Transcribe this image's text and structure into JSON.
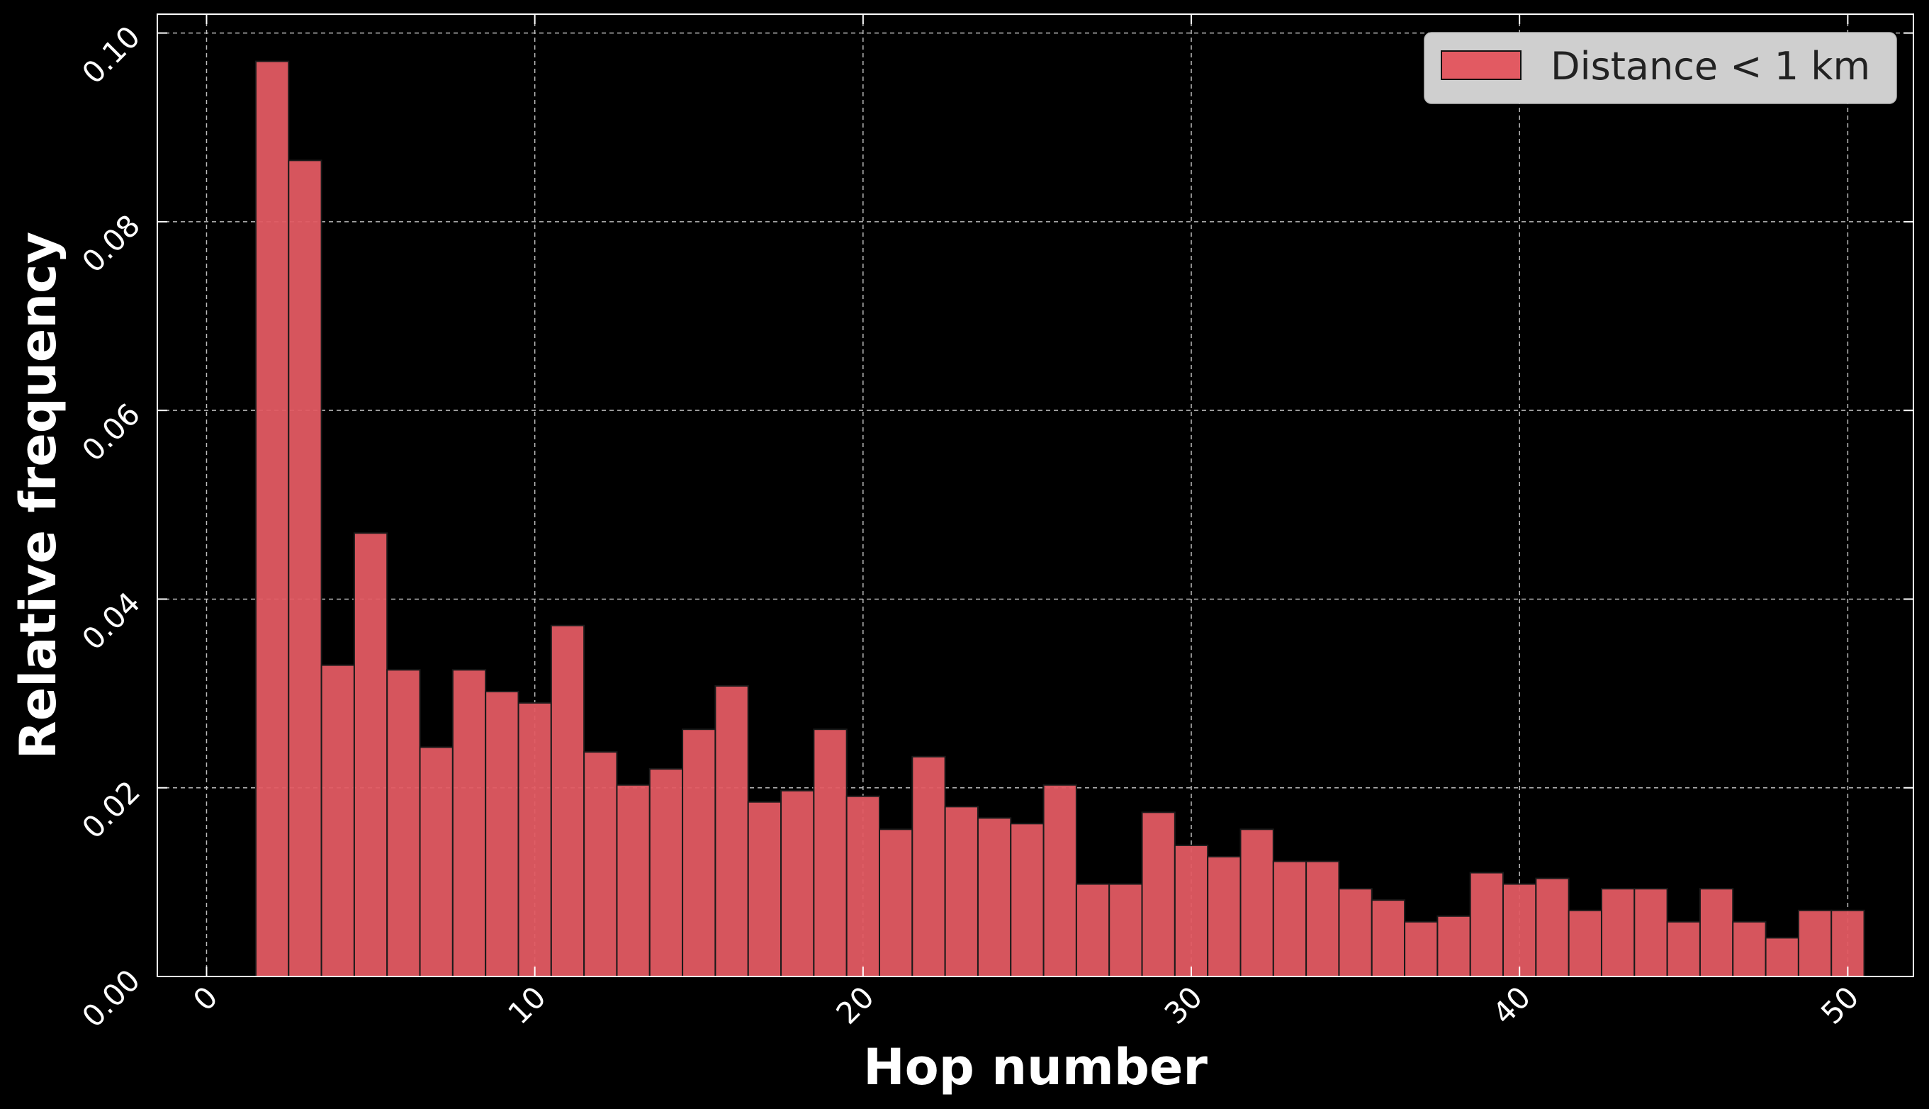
{
  "chart_data": {
    "type": "bar",
    "title": "",
    "xlabel": "Hop number",
    "ylabel": "Relative frequency",
    "xlim": [
      -1.5,
      52
    ],
    "ylim": [
      0.0,
      0.102
    ],
    "xticks": [
      0,
      10,
      20,
      30,
      40,
      50
    ],
    "xtick_labels": [
      "0",
      "10",
      "20",
      "30",
      "40",
      "50"
    ],
    "yticks": [
      0.0,
      0.02,
      0.04,
      0.06,
      0.08,
      0.1
    ],
    "ytick_labels": [
      "0.00",
      "0.02",
      "0.04",
      "0.06",
      "0.08",
      "0.10"
    ],
    "grid": true,
    "legend_position": "top-right",
    "series": [
      {
        "name": "Distance < 1 km",
        "color": "#e25a62",
        "x": [
          2,
          3,
          4,
          5,
          6,
          7,
          8,
          9,
          10,
          11,
          12,
          13,
          14,
          15,
          16,
          17,
          18,
          19,
          20,
          21,
          22,
          23,
          24,
          25,
          26,
          27,
          28,
          29,
          30,
          31,
          32,
          33,
          34,
          35,
          36,
          37,
          38,
          39,
          40,
          41,
          42,
          43,
          44,
          45,
          46,
          47,
          48,
          49,
          50
        ],
        "values": [
          0.097,
          0.0865,
          0.033,
          0.047,
          0.0325,
          0.0243,
          0.0325,
          0.0302,
          0.029,
          0.0372,
          0.0238,
          0.0203,
          0.022,
          0.0262,
          0.0308,
          0.0185,
          0.0197,
          0.0262,
          0.0191,
          0.0156,
          0.0233,
          0.018,
          0.0168,
          0.0162,
          0.0203,
          0.0098,
          0.0098,
          0.0174,
          0.0139,
          0.0127,
          0.0156,
          0.0122,
          0.0122,
          0.0093,
          0.0081,
          0.0058,
          0.0064,
          0.011,
          0.0098,
          0.0104,
          0.007,
          0.0093,
          0.0093,
          0.0058,
          0.0093,
          0.0058,
          0.0041,
          0.007,
          0.007
        ]
      }
    ]
  }
}
